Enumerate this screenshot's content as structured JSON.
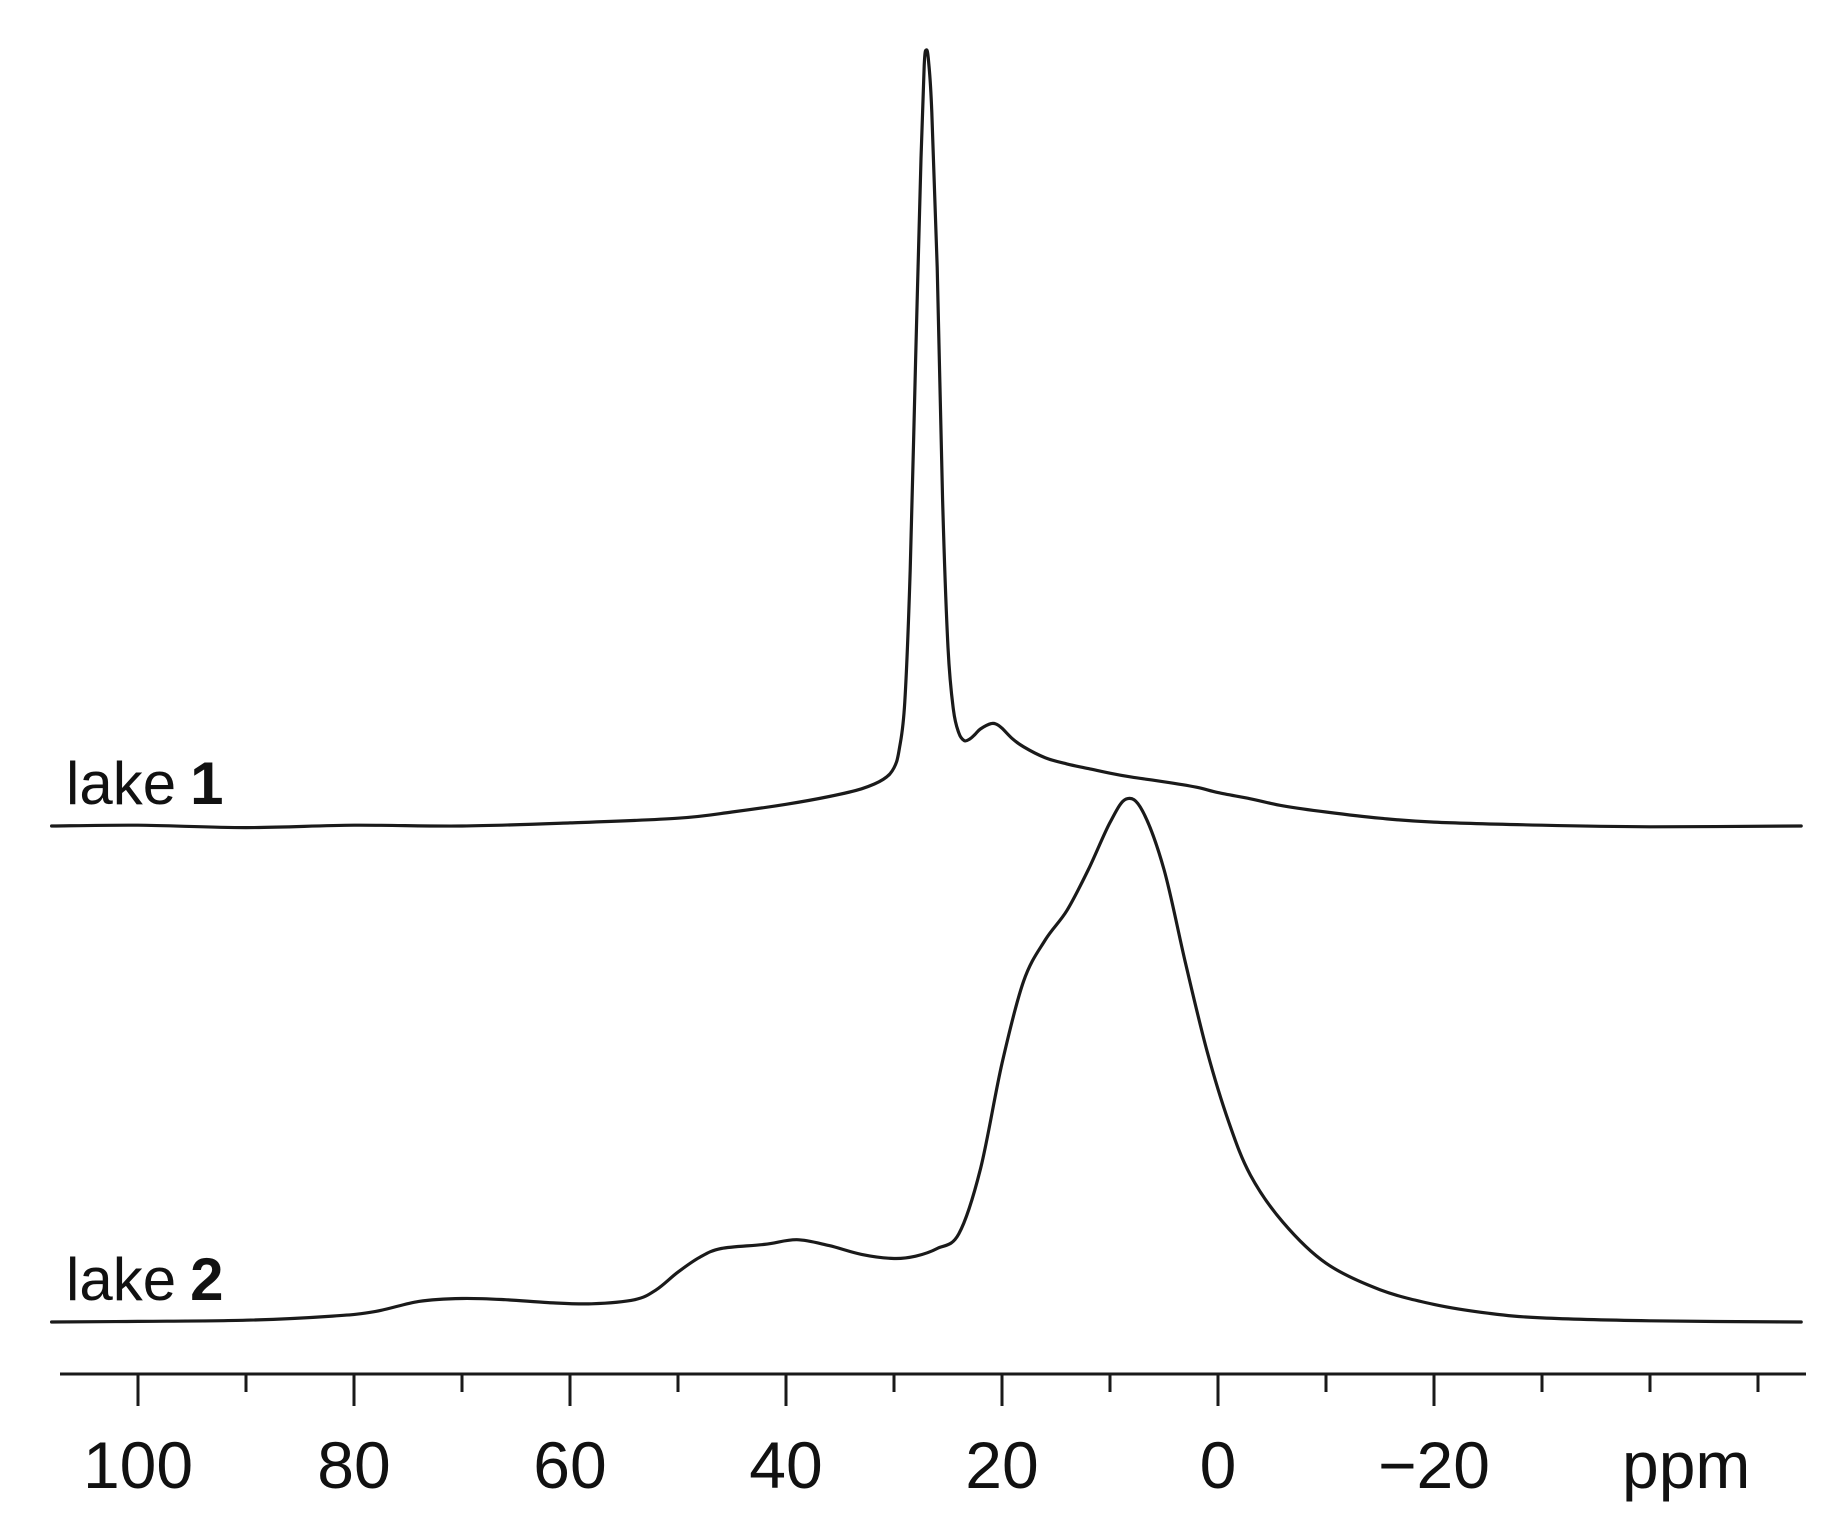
{
  "chart_data": {
    "type": "line",
    "xlabel": "ppm",
    "x_reversed": true,
    "xlim": [
      108,
      -54
    ],
    "major_ticks": [
      100,
      80,
      60,
      40,
      20,
      0,
      -20
    ],
    "major_tick_labels": [
      "100",
      "80",
      "60",
      "40",
      "20",
      "0",
      "−20"
    ],
    "minor_ticks": [
      90,
      70,
      50,
      30,
      10,
      -10,
      -30,
      -40,
      -50
    ],
    "grid": false,
    "series": [
      {
        "name_prefix": "lake",
        "name_number": "1",
        "points": [
          [
            108,
            0.0
          ],
          [
            100,
            0.001
          ],
          [
            90,
            -0.002
          ],
          [
            80,
            0.001
          ],
          [
            70,
            0.0
          ],
          [
            60,
            0.004
          ],
          [
            50,
            0.01
          ],
          [
            45,
            0.018
          ],
          [
            40,
            0.028
          ],
          [
            36,
            0.038
          ],
          [
            33,
            0.048
          ],
          [
            31,
            0.06
          ],
          [
            30,
            0.075
          ],
          [
            29.5,
            0.1
          ],
          [
            29,
            0.16
          ],
          [
            28.5,
            0.33
          ],
          [
            28,
            0.6
          ],
          [
            27.5,
            0.86
          ],
          [
            27.2,
            0.98
          ],
          [
            27,
            1.0
          ],
          [
            26.8,
            0.985
          ],
          [
            26.5,
            0.92
          ],
          [
            26,
            0.72
          ],
          [
            25.5,
            0.42
          ],
          [
            25,
            0.23
          ],
          [
            24.5,
            0.15
          ],
          [
            24,
            0.12
          ],
          [
            23.5,
            0.11
          ],
          [
            23,
            0.112
          ],
          [
            22.5,
            0.118
          ],
          [
            22,
            0.125
          ],
          [
            21,
            0.132
          ],
          [
            20.5,
            0.131
          ],
          [
            20,
            0.126
          ],
          [
            19,
            0.112
          ],
          [
            18,
            0.102
          ],
          [
            16,
            0.088
          ],
          [
            14,
            0.08
          ],
          [
            12,
            0.074
          ],
          [
            10,
            0.068
          ],
          [
            8,
            0.063
          ],
          [
            5,
            0.057
          ],
          [
            2,
            0.05
          ],
          [
            0,
            0.043
          ],
          [
            -3,
            0.035
          ],
          [
            -6,
            0.026
          ],
          [
            -10,
            0.018
          ],
          [
            -15,
            0.01
          ],
          [
            -20,
            0.005
          ],
          [
            -30,
            0.001
          ],
          [
            -40,
            -0.001
          ],
          [
            -54,
            0.0
          ]
        ]
      },
      {
        "name_prefix": "lake",
        "name_number": "2",
        "points": [
          [
            108,
            0.0
          ],
          [
            100,
            0.001
          ],
          [
            90,
            0.003
          ],
          [
            82,
            0.01
          ],
          [
            78,
            0.018
          ],
          [
            74,
            0.035
          ],
          [
            70,
            0.04
          ],
          [
            66,
            0.038
          ],
          [
            62,
            0.033
          ],
          [
            58,
            0.031
          ],
          [
            54,
            0.038
          ],
          [
            52,
            0.055
          ],
          [
            50,
            0.085
          ],
          [
            48,
            0.11
          ],
          [
            46,
            0.125
          ],
          [
            42,
            0.132
          ],
          [
            39,
            0.14
          ],
          [
            36,
            0.13
          ],
          [
            33,
            0.115
          ],
          [
            30,
            0.108
          ],
          [
            28,
            0.112
          ],
          [
            26,
            0.125
          ],
          [
            24,
            0.15
          ],
          [
            22,
            0.26
          ],
          [
            20,
            0.44
          ],
          [
            18,
            0.58
          ],
          [
            16,
            0.65
          ],
          [
            14,
            0.7
          ],
          [
            12,
            0.77
          ],
          [
            10,
            0.85
          ],
          [
            8.5,
            0.89
          ],
          [
            7,
            0.87
          ],
          [
            5,
            0.77
          ],
          [
            3,
            0.61
          ],
          [
            1,
            0.46
          ],
          [
            -1,
            0.34
          ],
          [
            -3,
            0.25
          ],
          [
            -6,
            0.17
          ],
          [
            -10,
            0.1
          ],
          [
            -15,
            0.055
          ],
          [
            -20,
            0.03
          ],
          [
            -25,
            0.015
          ],
          [
            -30,
            0.007
          ],
          [
            -40,
            0.002
          ],
          [
            -54,
            0.0
          ]
        ]
      }
    ]
  }
}
